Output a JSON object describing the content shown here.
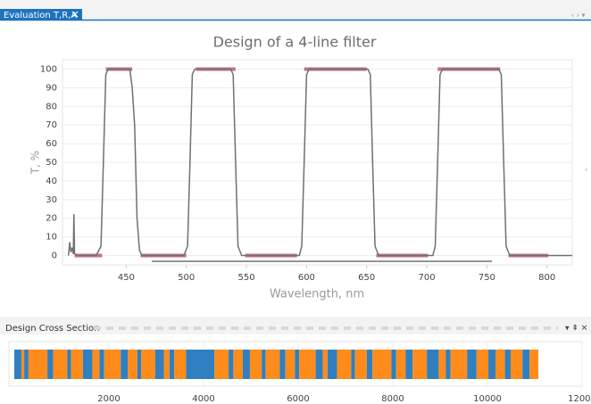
{
  "tab": {
    "title": "Evaluation T,R,A"
  },
  "chart_data": [
    {
      "type": "line",
      "title": "Design of a 4-line filter",
      "x_label": "Wavelength, nm",
      "y_label": "T, %",
      "xlim": [
        397,
        821
      ],
      "ylim": [
        -5,
        105
      ],
      "xticks": [
        450,
        500,
        550,
        600,
        650,
        700,
        750,
        800
      ],
      "yticks": [
        0,
        10,
        20,
        30,
        40,
        50,
        60,
        70,
        80,
        90,
        100
      ],
      "grid": true,
      "series": [
        {
          "color": "#c2728e",
          "width": 4,
          "x": [
            407,
            430,
            null,
            433,
            455,
            null,
            462,
            500,
            null,
            508,
            541,
            null,
            549,
            592,
            null,
            598,
            650,
            null,
            658,
            701,
            null,
            709,
            761,
            null,
            768,
            801
          ],
          "values": [
            0,
            0,
            null,
            100,
            100,
            null,
            0,
            0,
            null,
            100,
            100,
            null,
            0,
            0,
            null,
            100,
            100,
            null,
            0,
            0,
            null,
            100,
            100,
            null,
            0,
            0
          ]
        },
        {
          "color": "#707070",
          "width": 1.5,
          "x": [
            402,
            403,
            404,
            405,
            406,
            406.5,
            407,
            410,
            425,
            429,
            431,
            433,
            435,
            453,
            455,
            457,
            459,
            461,
            463,
            498,
            501,
            503,
            505,
            507,
            537,
            539,
            541,
            543,
            546,
            594,
            596,
            598,
            600,
            602,
            651,
            653,
            655,
            657,
            660,
            705,
            707,
            709,
            711,
            713,
            760,
            762,
            764,
            766,
            769,
            821
          ],
          "values": [
            0,
            7,
            2,
            4,
            1,
            22,
            1,
            0,
            0,
            5,
            50,
            97,
            100,
            100,
            90,
            70,
            20,
            3,
            0,
            0,
            5,
            50,
            97,
            100,
            100,
            97,
            50,
            5,
            0,
            0,
            5,
            50,
            97,
            100,
            100,
            97,
            50,
            5,
            0,
            0,
            5,
            50,
            97,
            100,
            100,
            97,
            50,
            5,
            0,
            0
          ]
        }
      ]
    },
    {
      "type": "layers",
      "title": "Design Cross Section",
      "xlim": [
        0,
        12000
      ],
      "xticks": [
        2000,
        4000,
        6000,
        8000,
        10000,
        12000
      ],
      "colors": [
        "#2f7fc1",
        "#ff8c1a"
      ],
      "values": [
        150,
        60,
        90,
        400,
        120,
        300,
        80,
        250,
        200,
        150,
        100,
        350,
        150,
        200,
        80,
        300,
        180,
        120,
        100,
        250,
        600,
        300,
        100,
        200,
        150,
        250,
        80,
        300,
        120,
        200,
        90,
        350,
        150,
        100,
        200,
        300,
        80,
        250,
        120,
        400,
        100,
        200,
        150,
        300,
        250,
        150,
        100,
        350,
        200,
        250,
        150,
        200,
        120,
        250,
        150,
        185
      ]
    }
  ]
}
